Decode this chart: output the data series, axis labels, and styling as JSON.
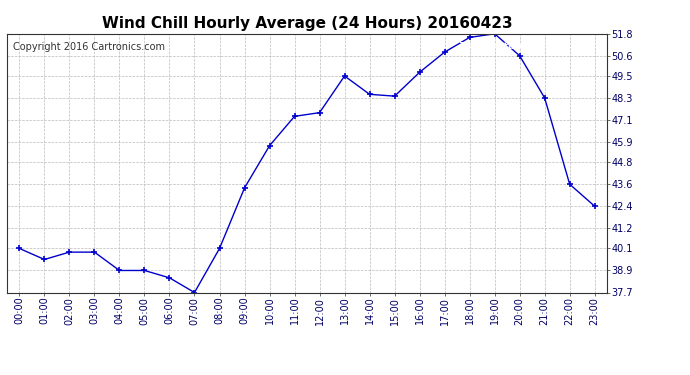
{
  "title": "Wind Chill Hourly Average (24 Hours) 20160423",
  "copyright": "Copyright 2016 Cartronics.com",
  "hours": [
    "00:00",
    "01:00",
    "02:00",
    "03:00",
    "04:00",
    "05:00",
    "06:00",
    "07:00",
    "08:00",
    "09:00",
    "10:00",
    "11:00",
    "12:00",
    "13:00",
    "14:00",
    "15:00",
    "16:00",
    "17:00",
    "18:00",
    "19:00",
    "20:00",
    "21:00",
    "22:00",
    "23:00"
  ],
  "values": [
    40.1,
    39.5,
    39.9,
    39.9,
    38.9,
    38.9,
    38.5,
    37.7,
    40.1,
    43.4,
    45.7,
    47.3,
    47.5,
    49.5,
    48.5,
    48.4,
    49.7,
    50.8,
    51.6,
    51.8,
    50.6,
    48.3,
    43.6,
    42.4
  ],
  "line_color": "#0000cc",
  "marker_color": "#0000cc",
  "bg_color": "#ffffff",
  "grid_color": "#bbbbbb",
  "ylim_min": 37.7,
  "ylim_max": 51.8,
  "yticks": [
    37.7,
    38.9,
    40.1,
    41.2,
    42.4,
    43.6,
    44.8,
    45.9,
    47.1,
    48.3,
    49.5,
    50.6,
    51.8
  ],
  "title_fontsize": 11,
  "copyright_fontsize": 7,
  "tick_fontsize": 7,
  "legend_bg": "#0000bb",
  "legend_fg": "#ffffff"
}
